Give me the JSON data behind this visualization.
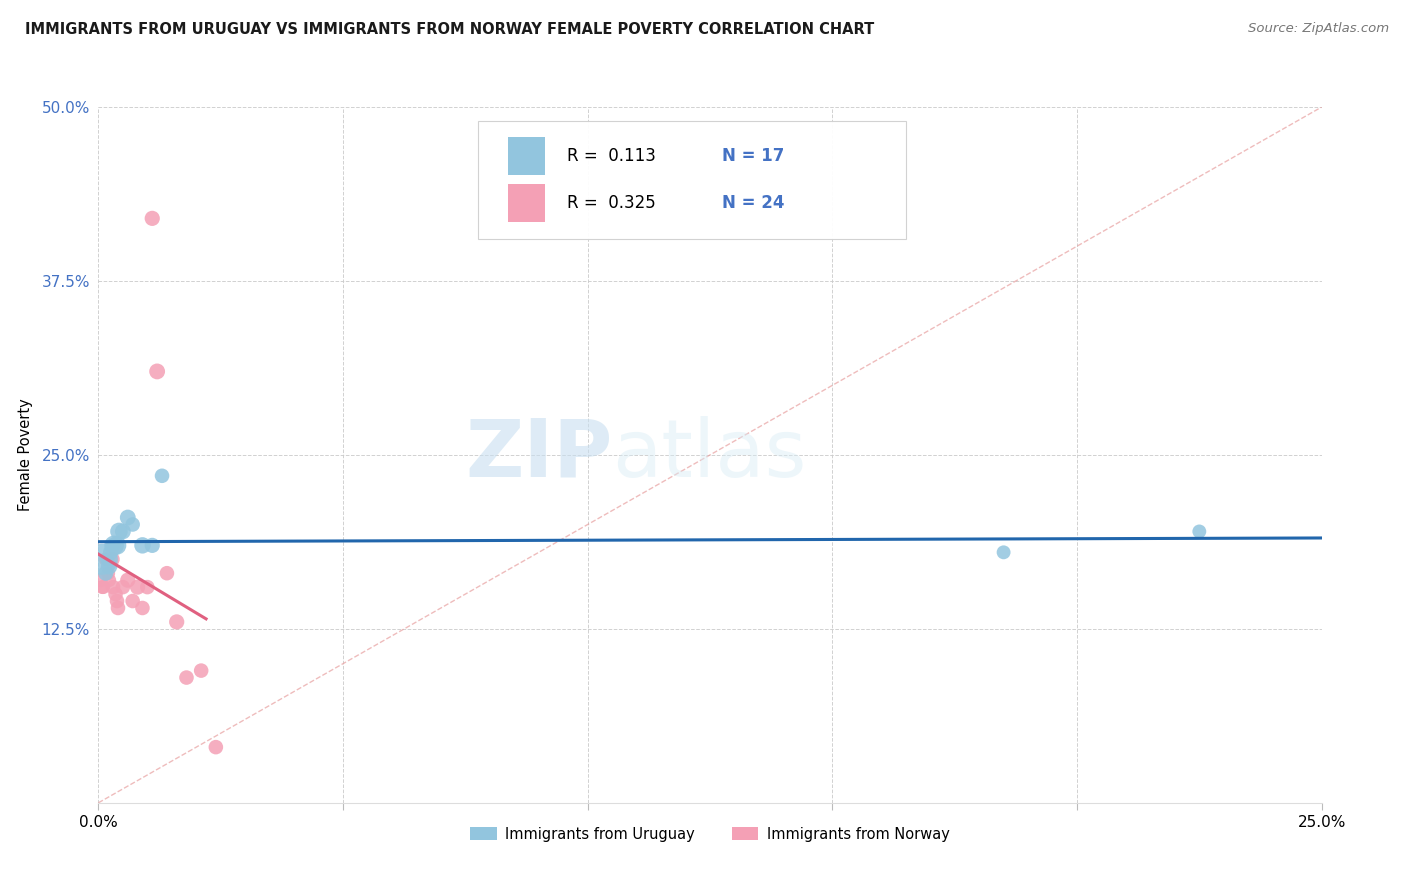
{
  "title": "IMMIGRANTS FROM URUGUAY VS IMMIGRANTS FROM NORWAY FEMALE POVERTY CORRELATION CHART",
  "source": "Source: ZipAtlas.com",
  "ylabel": "Female Poverty",
  "xlim": [
    0,
    0.25
  ],
  "ylim": [
    0,
    0.5
  ],
  "xticks": [
    0.0,
    0.05,
    0.1,
    0.15,
    0.2,
    0.25
  ],
  "yticks": [
    0.0,
    0.125,
    0.25,
    0.375,
    0.5
  ],
  "color_uruguay": "#92c5de",
  "color_norway": "#f4a0b5",
  "color_line_uruguay": "#2166ac",
  "color_line_norway": "#e06080",
  "R_uruguay": "0.113",
  "N_uruguay": "17",
  "R_norway": "0.325",
  "N_norway": "24",
  "legend_label_uruguay": "Immigrants from Uruguay",
  "legend_label_norway": "Immigrants from Norway",
  "uruguay_x": [
    0.0008,
    0.0015,
    0.0018,
    0.0022,
    0.0025,
    0.003,
    0.0032,
    0.0038,
    0.0042,
    0.005,
    0.006,
    0.007,
    0.009,
    0.011,
    0.013,
    0.185,
    0.225
  ],
  "uruguay_y": [
    0.175,
    0.165,
    0.175,
    0.17,
    0.18,
    0.185,
    0.185,
    0.185,
    0.195,
    0.195,
    0.205,
    0.2,
    0.185,
    0.185,
    0.235,
    0.18,
    0.195
  ],
  "uruguay_size": [
    500,
    120,
    100,
    140,
    120,
    110,
    200,
    180,
    160,
    130,
    130,
    110,
    140,
    120,
    110,
    100,
    100
  ],
  "norway_x": [
    0.0005,
    0.0008,
    0.001,
    0.0015,
    0.002,
    0.0022,
    0.0028,
    0.003,
    0.0035,
    0.0038,
    0.004,
    0.005,
    0.006,
    0.007,
    0.008,
    0.009,
    0.01,
    0.011,
    0.012,
    0.014,
    0.016,
    0.018,
    0.021,
    0.024
  ],
  "norway_y": [
    0.16,
    0.155,
    0.155,
    0.175,
    0.165,
    0.16,
    0.175,
    0.155,
    0.15,
    0.145,
    0.14,
    0.155,
    0.16,
    0.145,
    0.155,
    0.14,
    0.155,
    0.42,
    0.31,
    0.165,
    0.13,
    0.09,
    0.095,
    0.04
  ],
  "norway_size": [
    100,
    100,
    100,
    100,
    100,
    100,
    120,
    110,
    110,
    110,
    110,
    110,
    120,
    110,
    120,
    110,
    110,
    120,
    130,
    110,
    120,
    110,
    110,
    110
  ]
}
